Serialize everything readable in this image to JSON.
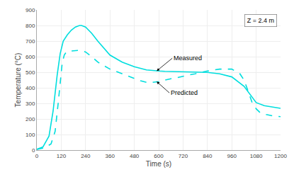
{
  "chart_data": {
    "type": "line",
    "xlabel": "Time (s)",
    "ylabel": "Temperature (°C)",
    "xlim": [
      0,
      1200
    ],
    "ylim": [
      0,
      900
    ],
    "xticks": [
      0,
      120,
      240,
      360,
      480,
      600,
      720,
      840,
      960,
      1080,
      1200
    ],
    "yticks": [
      0,
      100,
      200,
      300,
      400,
      500,
      600,
      700,
      800,
      900
    ],
    "grid": true,
    "series": [
      {
        "color": "#00dede",
        "line_style": "solid",
        "x": [
          0,
          30,
          60,
          80,
          100,
          115,
          130,
          150,
          170,
          190,
          210,
          220,
          240,
          270,
          300,
          360,
          420,
          480,
          540,
          570,
          600,
          630,
          660,
          690,
          720,
          750,
          780,
          810,
          840,
          900,
          960,
          1020,
          1060,
          1080,
          1120,
          1160,
          1200
        ],
        "values": [
          5,
          20,
          90,
          250,
          480,
          620,
          700,
          740,
          770,
          790,
          800,
          800,
          790,
          750,
          700,
          610,
          565,
          535,
          515,
          510,
          508,
          506,
          505,
          503,
          502,
          501,
          500,
          500,
          499,
          490,
          470,
          410,
          340,
          305,
          285,
          275,
          268
        ]
      },
      {
        "color": "#00dede",
        "line_style": "dashed",
        "x": [
          0,
          40,
          70,
          90,
          105,
          115,
          125,
          135,
          145,
          160,
          180,
          200,
          220,
          240,
          270,
          300,
          360,
          420,
          480,
          510,
          540,
          570,
          600,
          630,
          660,
          690,
          720,
          750,
          780,
          810,
          840,
          900,
          960,
          1000,
          1020,
          1040,
          1060,
          1080,
          1100,
          1130,
          1160,
          1200
        ],
        "values": [
          5,
          15,
          40,
          120,
          300,
          440,
          560,
          610,
          630,
          635,
          638,
          640,
          638,
          630,
          600,
          565,
          520,
          490,
          460,
          445,
          435,
          435,
          440,
          450,
          458,
          465,
          475,
          483,
          490,
          498,
          508,
          520,
          520,
          490,
          450,
          380,
          305,
          265,
          240,
          228,
          220,
          215
        ]
      }
    ],
    "annotations": [
      {
        "text": "Measured",
        "x": 590,
        "y": 508
      },
      {
        "text": "Predicted",
        "x": 590,
        "y": 440
      },
      {
        "text": "Z = 2.4 m"
      }
    ]
  }
}
